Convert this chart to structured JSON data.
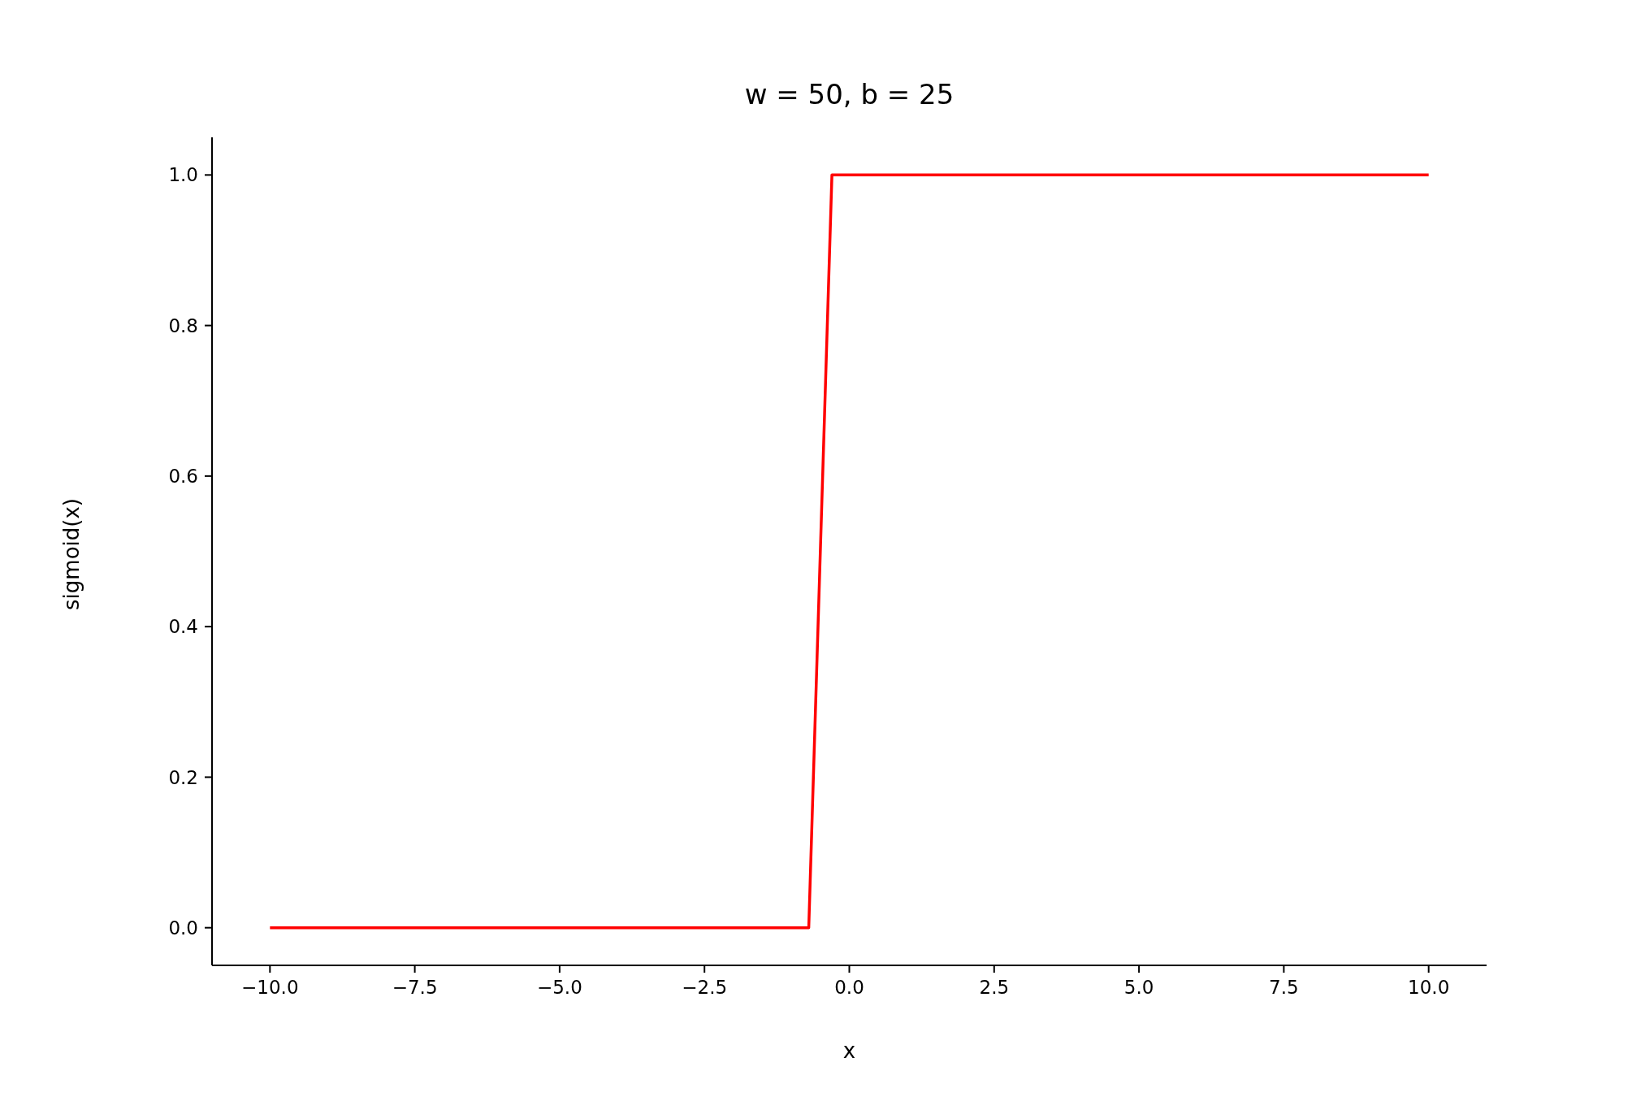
{
  "chart_data": {
    "type": "line",
    "title": "w = 50, b = 25",
    "xlabel": "x",
    "ylabel": "sigmoid(x)",
    "series": [
      {
        "color": "#ff0000",
        "x": [
          -10,
          -0.7,
          -0.3,
          10
        ],
        "values": [
          0,
          0,
          1,
          1
        ]
      }
    ],
    "xlim": [
      -11,
      11
    ],
    "ylim": [
      -0.05,
      1.05
    ],
    "xticks": [
      {
        "value": -10,
        "label": "−10.0"
      },
      {
        "value": -7.5,
        "label": "−7.5"
      },
      {
        "value": -5,
        "label": "−5.0"
      },
      {
        "value": -2.5,
        "label": "−2.5"
      },
      {
        "value": 0,
        "label": "0.0"
      },
      {
        "value": 2.5,
        "label": "2.5"
      },
      {
        "value": 5,
        "label": "5.0"
      },
      {
        "value": 7.5,
        "label": "7.5"
      },
      {
        "value": 10,
        "label": "10.0"
      }
    ],
    "yticks": [
      {
        "value": 0,
        "label": "0.0"
      },
      {
        "value": 0.2,
        "label": "0.2"
      },
      {
        "value": 0.4,
        "label": "0.4"
      },
      {
        "value": 0.6,
        "label": "0.6"
      },
      {
        "value": 0.8,
        "label": "0.8"
      },
      {
        "value": 1,
        "label": "1.0"
      }
    ],
    "grid": false,
    "legend": false,
    "marker": "none",
    "line_style": "solid"
  }
}
